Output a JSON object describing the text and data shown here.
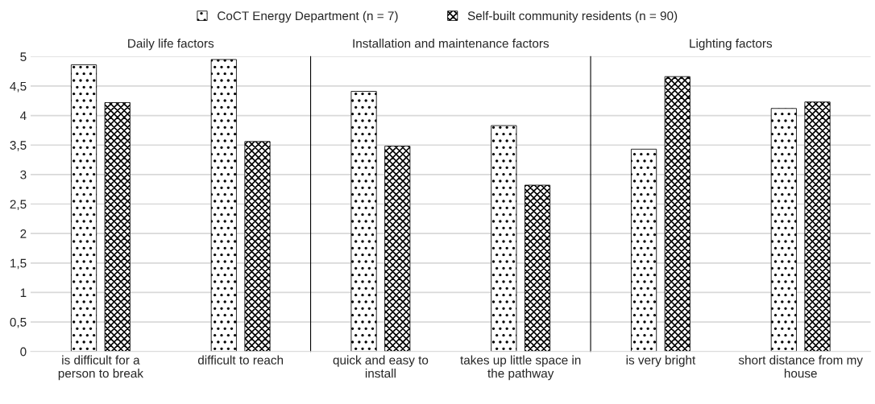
{
  "chart_data": [
    {
      "type": "bar",
      "title": "Daily life factors",
      "categories": [
        "is difficult for a person to break",
        "difficult to reach"
      ],
      "ylim": [
        0,
        5
      ],
      "yticks": [
        0,
        {
          "value": 0.5,
          "label": "0,5"
        },
        1,
        {
          "value": 1.5,
          "label": "1,5"
        },
        2,
        {
          "value": 2.5,
          "label": "2,5"
        },
        3,
        {
          "value": 3.5,
          "label": "3,5"
        },
        4,
        {
          "value": 4.5,
          "label": "4,5"
        },
        5
      ],
      "grid": "y",
      "legend": "top",
      "series": [
        {
          "name": "CoCT Energy Department (n = 7)",
          "color": "#000000",
          "values": [
            4.86,
            4.95
          ]
        },
        {
          "name": "Self-built community residents (n = 90)",
          "color": "#000000",
          "values": [
            4.22,
            3.56
          ]
        }
      ]
    },
    {
      "type": "bar",
      "title": "Installation and maintenance factors",
      "categories": [
        "quick and easy to install",
        "takes up little space in the pathway"
      ],
      "ylim": [
        0,
        5
      ],
      "yticks": [
        {
          "value": 0,
          "label": null
        },
        {
          "value": 0.5,
          "label": null
        },
        {
          "value": 1,
          "label": null
        },
        {
          "value": 1.5,
          "label": null
        },
        {
          "value": 2,
          "label": null
        },
        {
          "value": 2.5,
          "label": null
        },
        {
          "value": 3,
          "label": null
        },
        {
          "value": 3.5,
          "label": null
        },
        {
          "value": 4,
          "label": null
        },
        {
          "value": 4.5,
          "label": null
        },
        {
          "value": 5,
          "label": null
        }
      ],
      "grid": "y",
      "tick_labels": "x",
      "series": [
        {
          "color": "#000000",
          "values": [
            4.41,
            3.83
          ]
        },
        {
          "color": "#000000",
          "values": [
            3.48,
            2.82
          ]
        }
      ]
    },
    {
      "type": "bar",
      "title": "Lighting factors",
      "categories": [
        "is very bright",
        "short distance from my house"
      ],
      "ylim": [
        0,
        5
      ],
      "yticks": [
        {
          "value": 0,
          "label": null
        },
        {
          "value": 0.5,
          "label": null
        },
        {
          "value": 1,
          "label": null
        },
        {
          "value": 1.5,
          "label": null
        },
        {
          "value": 2,
          "label": null
        },
        {
          "value": 2.5,
          "label": null
        },
        {
          "value": 3,
          "label": null
        },
        {
          "value": 3.5,
          "label": null
        },
        {
          "value": 4,
          "label": null
        },
        {
          "value": 4.5,
          "label": null
        },
        {
          "value": 5,
          "label": null
        }
      ],
      "grid": "y",
      "tick_labels": "x",
      "series": [
        {
          "color": "#000000",
          "values": [
            3.43,
            4.12
          ]
        },
        {
          "color": "#000000",
          "values": [
            4.66,
            4.23
          ]
        }
      ]
    }
  ]
}
